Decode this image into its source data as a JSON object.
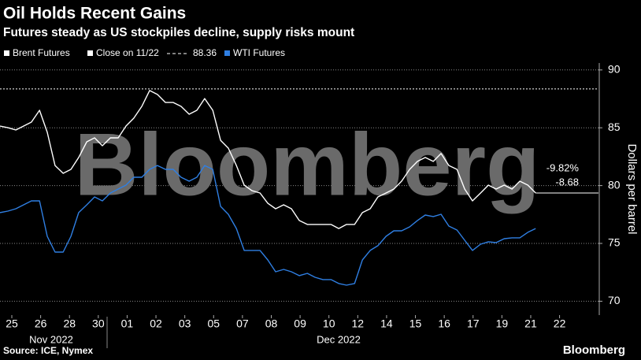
{
  "chart_data": {
    "type": "line",
    "title": "Oil Holds Recent Gains",
    "subtitle": "Futures steady as US stockpiles decline, supply risks mount",
    "y_label": "Dollars per barrel",
    "source": "Source: ICE, Nymex",
    "brand": "Bloomberg",
    "watermark": "Bloomberg",
    "month_labels": [
      "Nov 2022",
      "Dec 2022"
    ],
    "annotations": [
      "-9.82%",
      "-8.68"
    ],
    "reference_line": {
      "name": "Close on 11/22",
      "value": 88.36,
      "color": "#ffffff"
    },
    "x": [
      -0.41,
      -0.14,
      0.14,
      0.41,
      0.68,
      0.96,
      1.23,
      1.5,
      1.78,
      2.05,
      2.32,
      2.6,
      2.87,
      3.14,
      3.42,
      3.69,
      3.96,
      4.23,
      4.51,
      4.78,
      5.05,
      5.33,
      5.6,
      5.87,
      6.15,
      6.42,
      6.69,
      6.97,
      7.24,
      7.51,
      7.79,
      8.06,
      8.33,
      8.61,
      8.88,
      9.15,
      9.43,
      9.7,
      9.97,
      10.25,
      10.52,
      10.79,
      11.07,
      11.34,
      11.61,
      11.89,
      12.16,
      12.43,
      12.7,
      12.98,
      13.25,
      13.52,
      13.8,
      14.07,
      14.34,
      14.62,
      14.89,
      15.16,
      15.44,
      15.71,
      15.98,
      16.26,
      16.53,
      16.8,
      17.08,
      17.35,
      17.62,
      17.9,
      18.17
    ],
    "series": [
      {
        "name": "Brent Futures",
        "color": "#ffffff",
        "values": [
          85.15,
          85.01,
          84.81,
          85.15,
          85.49,
          86.51,
          84.61,
          81.74,
          81.06,
          81.4,
          82.43,
          83.79,
          84.13,
          83.45,
          84.13,
          84.13,
          85.15,
          85.83,
          86.85,
          88.22,
          87.88,
          87.19,
          87.19,
          86.85,
          86.17,
          86.51,
          87.53,
          86.51,
          83.92,
          83.24,
          81.74,
          80.04,
          79.56,
          79.36,
          78.47,
          78.0,
          78.34,
          78.0,
          76.98,
          76.64,
          76.64,
          76.64,
          76.64,
          76.29,
          76.64,
          76.64,
          77.66,
          78.0,
          79.02,
          79.36,
          79.7,
          80.38,
          81.4,
          82.09,
          82.43,
          82.09,
          82.77,
          81.74,
          81.4,
          79.7,
          78.68,
          79.36,
          80.04,
          79.7,
          80.04,
          79.7,
          80.38,
          80.04,
          79.36
        ]
      },
      {
        "name": "WTI Futures",
        "color": "#2f7fe3",
        "values": [
          77.66,
          77.79,
          78.0,
          78.34,
          78.68,
          78.68,
          75.61,
          74.25,
          74.25,
          75.61,
          77.66,
          78.34,
          79.02,
          78.68,
          79.36,
          79.7,
          80.04,
          80.72,
          80.72,
          81.4,
          81.74,
          81.4,
          81.4,
          80.72,
          80.38,
          80.72,
          81.74,
          81.4,
          78.2,
          77.52,
          76.29,
          74.39,
          74.39,
          74.39,
          73.57,
          72.55,
          72.75,
          72.55,
          72.21,
          72.41,
          72.07,
          71.87,
          71.87,
          71.53,
          71.39,
          71.53,
          73.57,
          74.39,
          74.8,
          75.61,
          76.09,
          76.09,
          76.43,
          76.98,
          77.45,
          77.32,
          77.52,
          76.5,
          76.16,
          75.27,
          74.39,
          74.93,
          75.14,
          75.07,
          75.41,
          75.48,
          75.48,
          75.96,
          76.29
        ]
      }
    ],
    "xlim": [
      -0.41,
      20.35
    ],
    "xticks": [
      {
        "value": 0,
        "label": "25"
      },
      {
        "value": 1,
        "label": "26"
      },
      {
        "value": 2,
        "label": "28"
      },
      {
        "value": 3,
        "label": "30"
      },
      {
        "value": 4,
        "label": "01"
      },
      {
        "value": 5,
        "label": "02"
      },
      {
        "value": 6,
        "label": "03"
      },
      {
        "value": 7,
        "label": "05"
      },
      {
        "value": 8,
        "label": "07"
      },
      {
        "value": 9,
        "label": "08"
      },
      {
        "value": 10,
        "label": "09"
      },
      {
        "value": 11,
        "label": "10"
      },
      {
        "value": 12,
        "label": "12"
      },
      {
        "value": 13,
        "label": "14"
      },
      {
        "value": 14,
        "label": "15"
      },
      {
        "value": 15,
        "label": "16"
      },
      {
        "value": 16,
        "label": "17"
      },
      {
        "value": 17,
        "label": "19"
      },
      {
        "value": 18,
        "label": "21"
      },
      {
        "value": 19,
        "label": "22"
      }
    ],
    "ylim": [
      68.8,
      90.6
    ],
    "yticks": [
      70,
      75,
      80,
      85,
      90
    ],
    "grid": true
  }
}
